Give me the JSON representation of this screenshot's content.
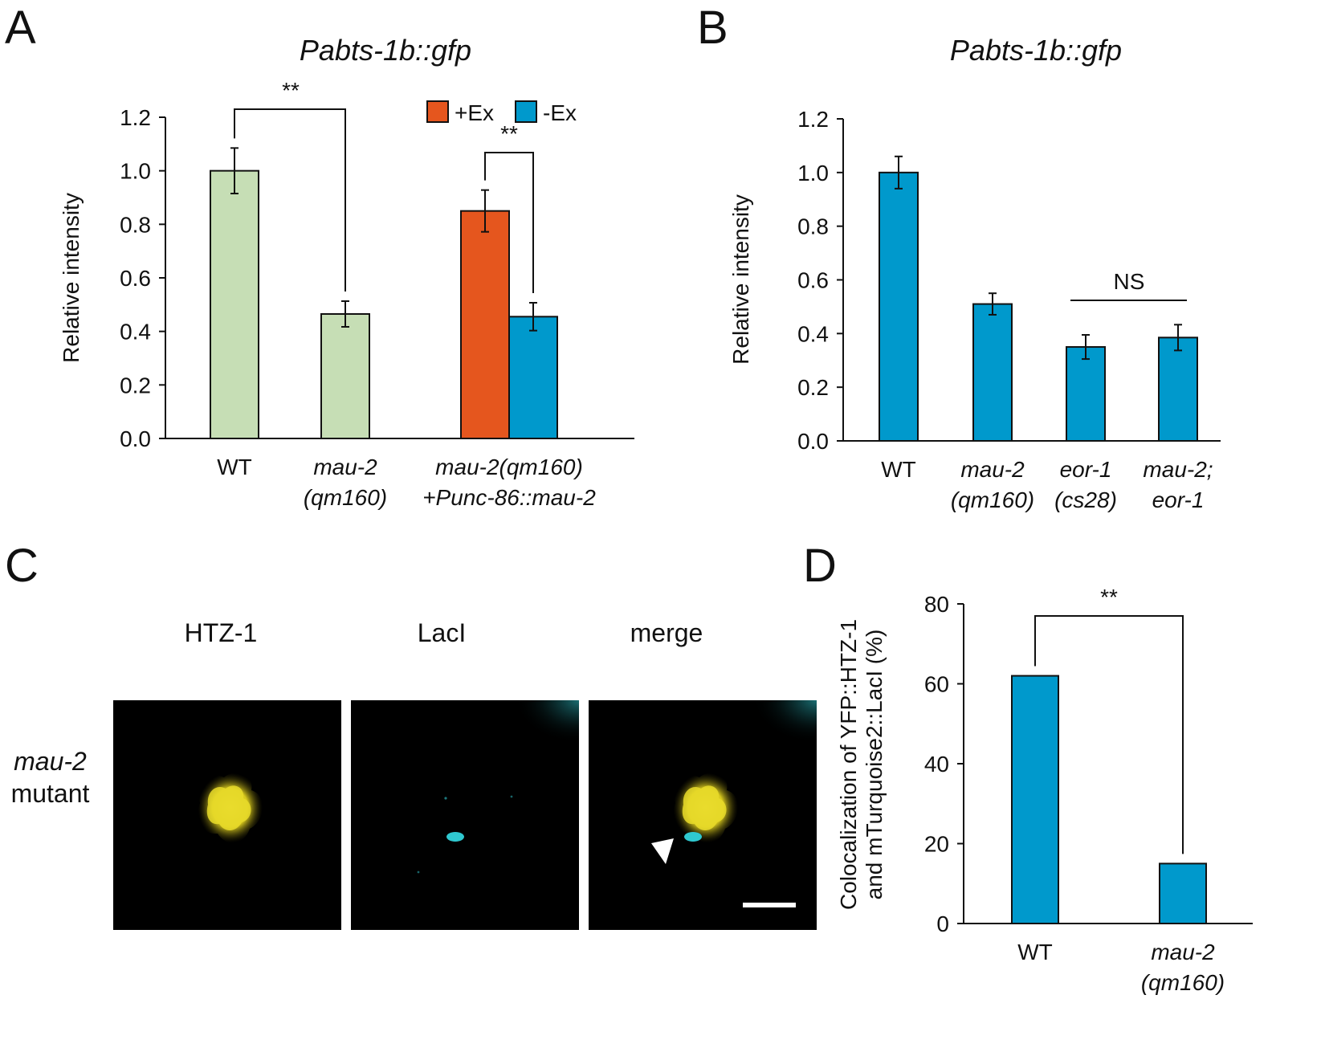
{
  "panels": {
    "a": "A",
    "b": "B",
    "c": "C",
    "d": "D"
  },
  "chart_data": [
    {
      "type": "bar",
      "panel": "A",
      "title": "Pabts-1b::gfp",
      "ylabel": "Relative intensity",
      "xlabel": "",
      "ylim": [
        0,
        1.2
      ],
      "yticks": [
        "0.0",
        "0.2",
        "0.4",
        "0.6",
        "0.8",
        "1.0",
        "1.2"
      ],
      "categories": [
        {
          "line1": "WT",
          "line2": "",
          "italic": false
        },
        {
          "line1": "mau-2",
          "line2": "(qm160)",
          "italic": true
        },
        {
          "line1": "mau-2(qm160)",
          "line2": "+Punc-86::mau-2",
          "italic": true
        }
      ],
      "legend": [
        {
          "name": "+Ex",
          "color": "#E5561E"
        },
        {
          "name": "-Ex",
          "color": "#0099CC"
        }
      ],
      "legend_position": "top-right",
      "bars": [
        {
          "category": 0,
          "value": 1.0,
          "error": 0.085,
          "color": "#C6DEB5"
        },
        {
          "category": 1,
          "value": 0.465,
          "error": 0.048,
          "color": "#C6DEB5"
        },
        {
          "category": 2,
          "series": "+Ex",
          "value": 0.85,
          "error": 0.078,
          "color": "#E5561E"
        },
        {
          "category": 2,
          "series": "-Ex",
          "value": 0.455,
          "error": 0.052,
          "color": "#0099CC"
        }
      ],
      "significance": [
        {
          "label": "**",
          "between": [
            0,
            1
          ]
        },
        {
          "label": "**",
          "between": [
            2,
            3
          ]
        }
      ]
    },
    {
      "type": "bar",
      "panel": "B",
      "title": "Pabts-1b::gfp",
      "ylabel": "Relative intensity",
      "xlabel": "",
      "ylim": [
        0,
        1.2
      ],
      "yticks": [
        "0.0",
        "0.2",
        "0.4",
        "0.6",
        "0.8",
        "1.0",
        "1.2"
      ],
      "categories": [
        {
          "line1": "WT",
          "line2": "",
          "italic": false
        },
        {
          "line1": "mau-2",
          "line2": "(qm160)",
          "italic": true
        },
        {
          "line1": "eor-1",
          "line2": "(cs28)",
          "italic": true
        },
        {
          "line1": "mau-2;",
          "line2": "eor-1",
          "italic": true
        }
      ],
      "bars": [
        {
          "category": 0,
          "value": 1.0,
          "error": 0.06,
          "color": "#0099CC"
        },
        {
          "category": 1,
          "value": 0.51,
          "error": 0.04,
          "color": "#0099CC"
        },
        {
          "category": 2,
          "value": 0.35,
          "error": 0.045,
          "color": "#0099CC"
        },
        {
          "category": 3,
          "value": 0.385,
          "error": 0.048,
          "color": "#0099CC"
        }
      ],
      "significance": [
        {
          "label": "NS",
          "between": [
            2,
            3
          ]
        }
      ]
    },
    {
      "type": "bar",
      "panel": "D",
      "title": "",
      "ylabel_line1": "Colocalization of YFP::HTZ-1",
      "ylabel_line2": "and mTurquoise2::LacI (%)",
      "xlabel": "",
      "ylim": [
        0,
        80
      ],
      "yticks": [
        "0",
        "20",
        "40",
        "60",
        "80"
      ],
      "categories": [
        {
          "line1": "WT",
          "line2": "",
          "italic": false
        },
        {
          "line1": "mau-2",
          "line2": "(qm160)",
          "italic": true
        }
      ],
      "bars": [
        {
          "category": 0,
          "value": 62,
          "color": "#0099CC"
        },
        {
          "category": 1,
          "value": 15,
          "color": "#0099CC"
        }
      ],
      "significance": [
        {
          "label": "**",
          "between": [
            0,
            1
          ]
        }
      ]
    }
  ],
  "micrographs": {
    "row_label_line1": "mau-2",
    "row_label_line2": "mutant",
    "columns": [
      "HTZ-1",
      "LacI",
      "merge"
    ],
    "colors": {
      "yfp": "#E8DA2A",
      "turquoise": "#2FC8D0"
    }
  }
}
